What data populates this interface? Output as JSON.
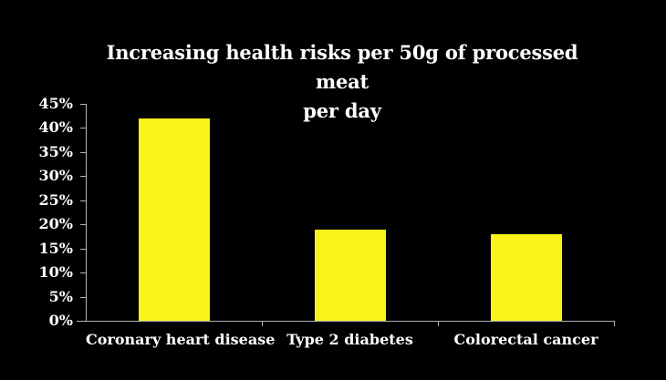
{
  "figure": {
    "background": "#000000",
    "text_color": "#ffffff",
    "axis_color": "#b3b3b3"
  },
  "chart_data": {
    "type": "bar",
    "title": "Increasing health risks per 50g of processed meat per day",
    "title_lines": [
      "Increasing health risks per 50g of processed meat",
      "per day"
    ],
    "categories": [
      "Coronary heart disease",
      "Type 2 diabetes",
      "Colorectal cancer"
    ],
    "values": [
      42,
      19,
      18
    ],
    "unit": "%",
    "bar_color": "#FBF21B",
    "ylim": [
      0,
      45
    ],
    "ytick_step": 5,
    "ytick_labels": [
      "0%",
      "5%",
      "10%",
      "15%",
      "20%",
      "25%",
      "30%",
      "35%",
      "40%",
      "45%"
    ],
    "grid": false,
    "legend": "none",
    "orientation": "vertical"
  }
}
